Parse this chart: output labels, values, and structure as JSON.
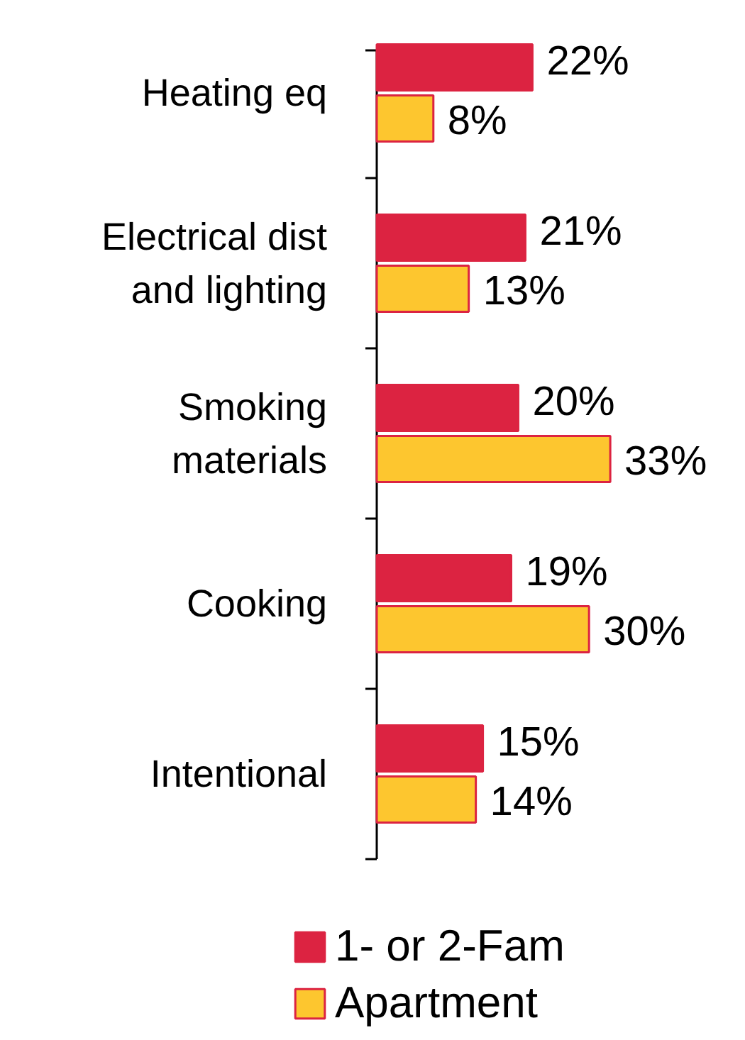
{
  "chart_data": {
    "type": "bar",
    "orientation": "horizontal",
    "categories": [
      "Heating eq",
      "Electrical dist and lighting",
      "Smoking materials",
      "Cooking",
      "Intentional"
    ],
    "series": [
      {
        "name": "1- or 2-Fam",
        "color": "#dc2341",
        "values": [
          22,
          21,
          20,
          19,
          15
        ],
        "value_labels": [
          "22%",
          "21%",
          "20%",
          "19%",
          "15%"
        ]
      },
      {
        "name": "Apartment",
        "color": "#fdc62f",
        "values": [
          8,
          13,
          33,
          30,
          14
        ],
        "value_labels": [
          "8%",
          "13%",
          "33%",
          "30%",
          "14%"
        ]
      }
    ],
    "legend": "bottom"
  }
}
